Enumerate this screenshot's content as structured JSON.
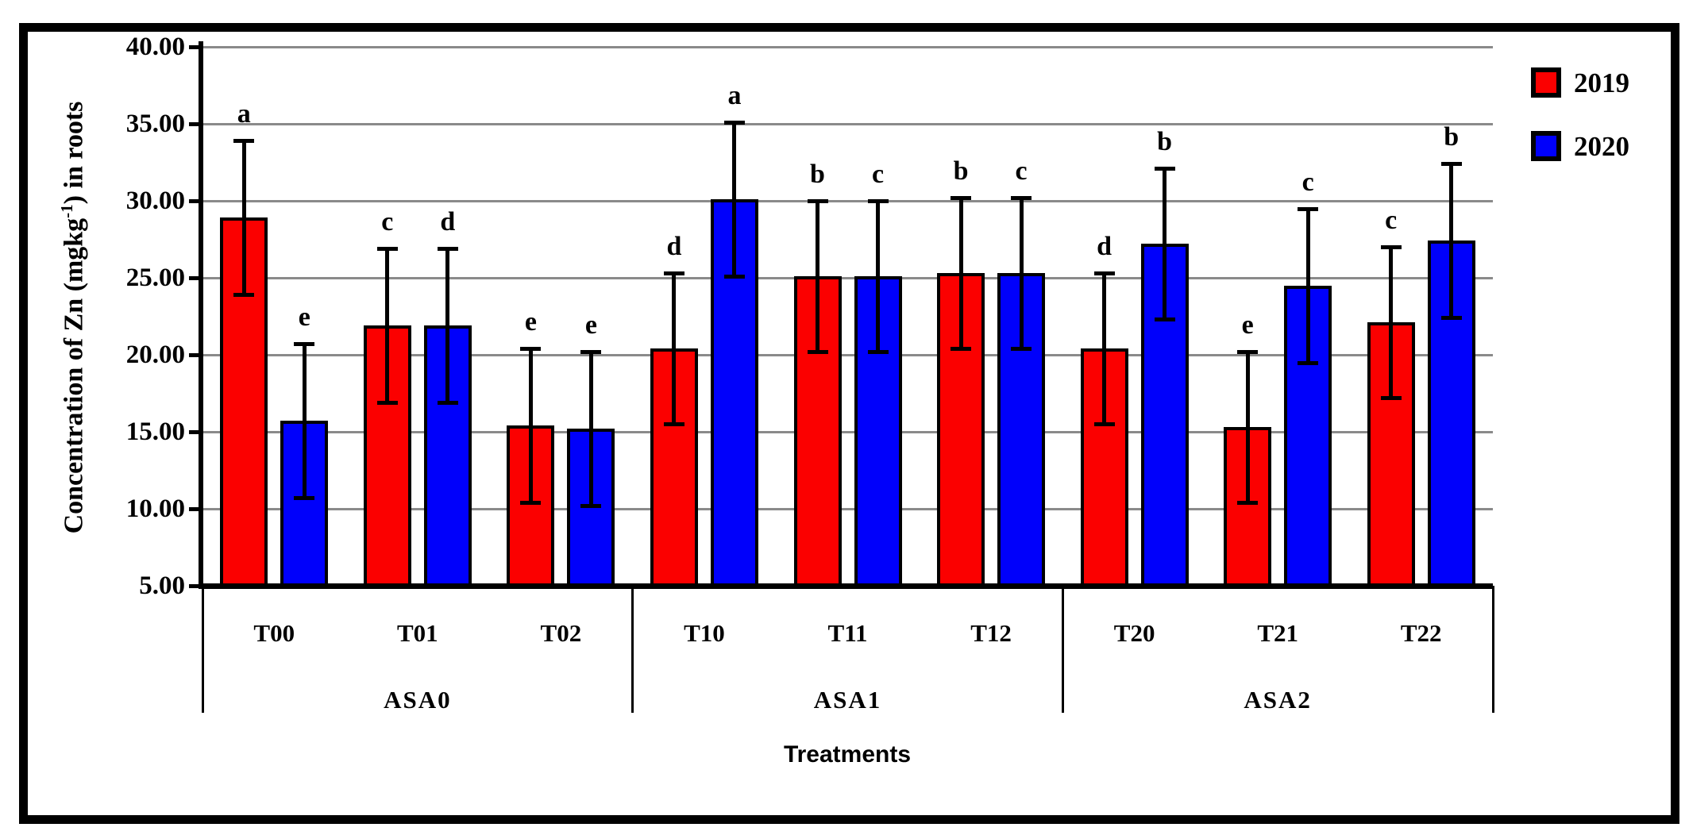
{
  "figure": {
    "background": "#ffffff",
    "border_color": "#000000",
    "gridline_color": "#8a8a8a"
  },
  "y_axis": {
    "title_pre": "Concentration of Zn (mgkg",
    "title_sup": "-1",
    "title_post": ") in roots",
    "ticks": [
      {
        "value": 40,
        "label": "40.00"
      },
      {
        "value": 35,
        "label": "35.00"
      },
      {
        "value": 30,
        "label": "30.00"
      },
      {
        "value": 25,
        "label": "25.00"
      },
      {
        "value": 20,
        "label": "20.00"
      },
      {
        "value": 15,
        "label": "15.00"
      },
      {
        "value": 10,
        "label": "10.00"
      },
      {
        "value": 5,
        "label": "5.00"
      }
    ]
  },
  "x_axis": {
    "title": "Treatments"
  },
  "legend": {
    "items": [
      {
        "label": "2019",
        "color": "#fb0000"
      },
      {
        "label": "2020",
        "color": "#0000fb"
      }
    ]
  },
  "chart_data": {
    "type": "bar",
    "title": "",
    "xlabel": "Treatments",
    "ylabel": "Concentration of Zn (mgkg-1) in roots",
    "ylim": [
      5,
      40
    ],
    "ytick_interval": 5,
    "grid": true,
    "legend_position": "top-right",
    "categories": [
      "T00",
      "T01",
      "T02",
      "T10",
      "T11",
      "T12",
      "T20",
      "T21",
      "T22"
    ],
    "groups": [
      {
        "label": "ASA0",
        "categories": [
          "T00",
          "T01",
          "T02"
        ]
      },
      {
        "label": "ASA1",
        "categories": [
          "T10",
          "T11",
          "T12"
        ]
      },
      {
        "label": "ASA2",
        "categories": [
          "T20",
          "T21",
          "T22"
        ]
      }
    ],
    "series": [
      {
        "name": "2019",
        "color": "#fb0000",
        "values": [
          28.9,
          21.9,
          15.4,
          20.4,
          25.1,
          25.3,
          20.4,
          15.3,
          22.1
        ],
        "errors": [
          5.0,
          5.0,
          5.0,
          4.9,
          4.9,
          4.9,
          4.9,
          4.9,
          4.9
        ],
        "sig_letters": [
          "a",
          "c",
          "e",
          "d",
          "b",
          "b",
          "d",
          "e",
          "c"
        ]
      },
      {
        "name": "2020",
        "color": "#0000fb",
        "values": [
          15.7,
          21.9,
          15.2,
          30.1,
          25.1,
          25.3,
          27.2,
          24.5,
          27.4
        ],
        "errors": [
          5.0,
          5.0,
          5.0,
          5.0,
          4.9,
          4.9,
          4.9,
          5.0,
          5.0
        ],
        "sig_letters": [
          "e",
          "d",
          "e",
          "a",
          "c",
          "c",
          "b",
          "c",
          "b"
        ]
      }
    ]
  }
}
